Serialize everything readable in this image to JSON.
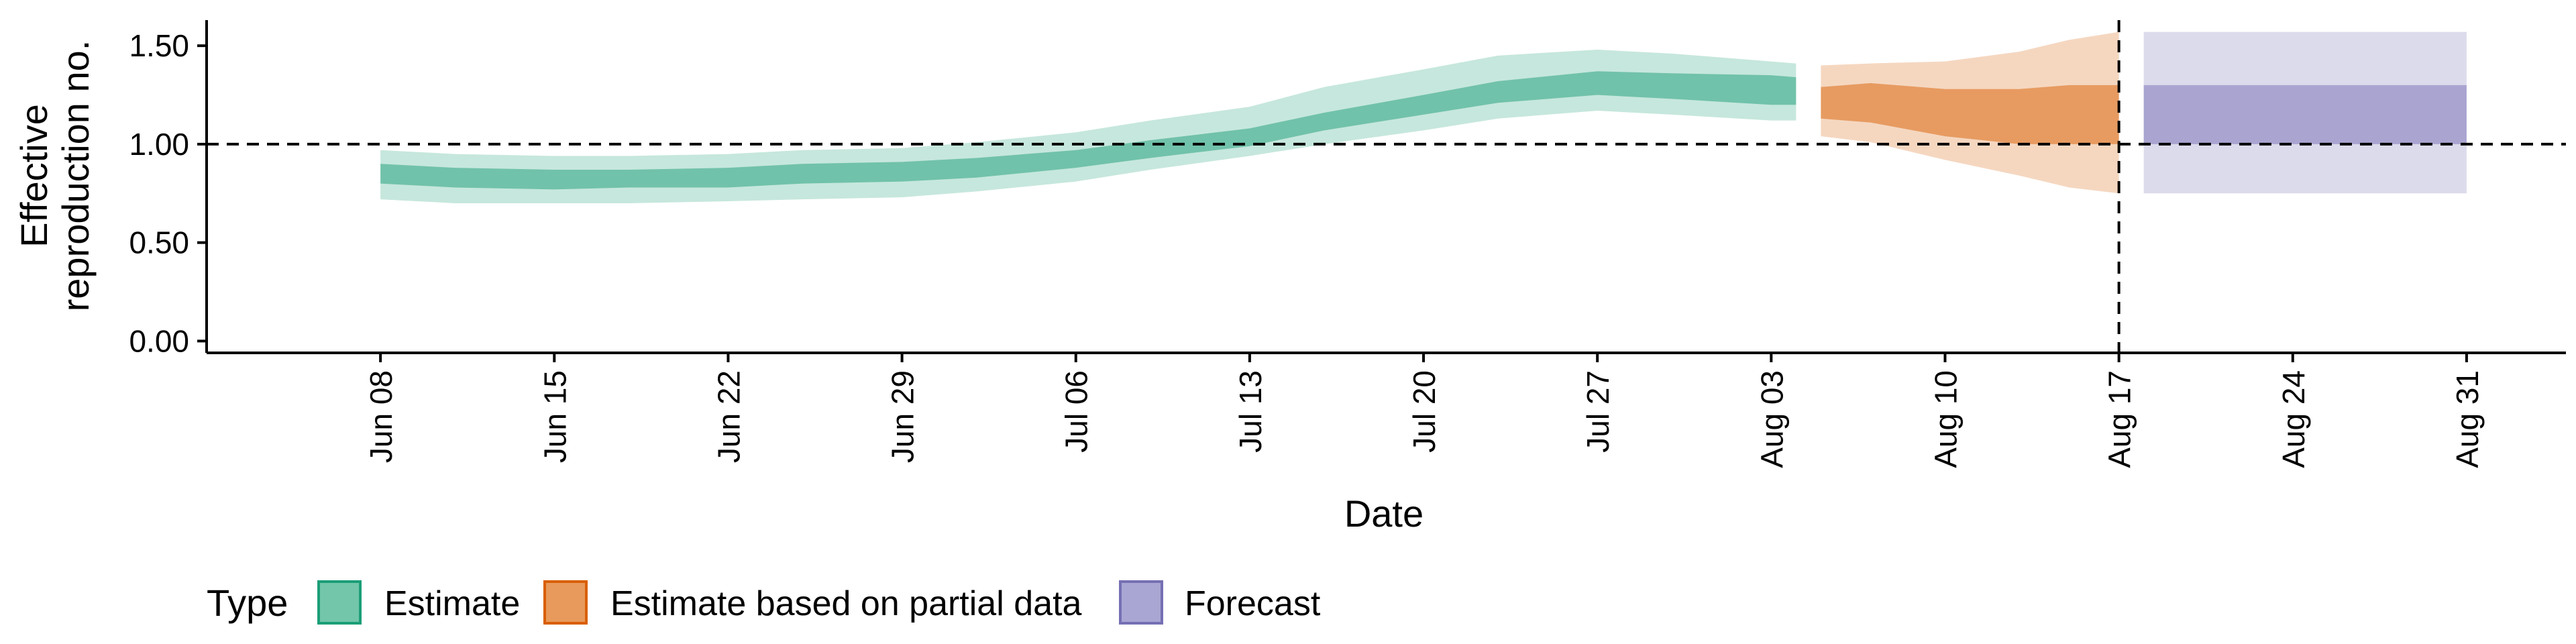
{
  "chart_data": {
    "type": "area",
    "title": "",
    "xlabel": "Date",
    "ylabel_lines": [
      "Effective",
      "reproduction no."
    ],
    "x_ticks": [
      "Jun 08",
      "Jun 15",
      "Jun 22",
      "Jun 29",
      "Jul 06",
      "Jul 13",
      "Jul 20",
      "Jul 27",
      "Aug 03",
      "Aug 10",
      "Aug 17",
      "Aug 24",
      "Aug 31"
    ],
    "y_ticks": [
      "0.00",
      "0.50",
      "1.00",
      "1.50"
    ],
    "ylim": [
      -0.06,
      1.63
    ],
    "xlim": [
      "2020-06-01",
      "2020-09-04"
    ],
    "reference_line_y": 1.0,
    "reference_line_x": "2020-08-17",
    "grid": false,
    "legend": {
      "title": "Type",
      "position": "bottom-left",
      "items": [
        {
          "label": "Estimate",
          "fill": "#73c6aa",
          "stroke": "#1b9e77"
        },
        {
          "label": "Estimate based on partial data",
          "fill": "#e89a5c",
          "stroke": "#d95f02"
        },
        {
          "label": "Forecast",
          "fill": "#a9a6d3",
          "stroke": "#7570b3"
        }
      ]
    },
    "series": [
      {
        "name": "Estimate",
        "color": "#1b9e77",
        "x": [
          "2020-06-08",
          "2020-06-11",
          "2020-06-15",
          "2020-06-18",
          "2020-06-22",
          "2020-06-25",
          "2020-06-29",
          "2020-07-02",
          "2020-07-06",
          "2020-07-09",
          "2020-07-13",
          "2020-07-16",
          "2020-07-20",
          "2020-07-23",
          "2020-07-27",
          "2020-07-30",
          "2020-08-03",
          "2020-08-04"
        ],
        "median": [
          0.85,
          0.83,
          0.82,
          0.82,
          0.83,
          0.85,
          0.86,
          0.88,
          0.92,
          0.97,
          1.03,
          1.11,
          1.2,
          1.27,
          1.32,
          1.31,
          1.28,
          1.27
        ],
        "lower_50": [
          0.8,
          0.78,
          0.77,
          0.78,
          0.78,
          0.8,
          0.81,
          0.83,
          0.88,
          0.93,
          0.99,
          1.07,
          1.15,
          1.21,
          1.25,
          1.23,
          1.2,
          1.2
        ],
        "upper_50": [
          0.9,
          0.88,
          0.87,
          0.87,
          0.88,
          0.9,
          0.91,
          0.93,
          0.97,
          1.02,
          1.08,
          1.16,
          1.25,
          1.32,
          1.37,
          1.36,
          1.35,
          1.34
        ],
        "lower_90": [
          0.72,
          0.7,
          0.7,
          0.7,
          0.71,
          0.72,
          0.73,
          0.76,
          0.81,
          0.87,
          0.94,
          1.0,
          1.07,
          1.13,
          1.17,
          1.15,
          1.12,
          1.12
        ],
        "upper_90": [
          0.97,
          0.95,
          0.94,
          0.94,
          0.95,
          0.97,
          0.98,
          1.01,
          1.06,
          1.12,
          1.19,
          1.29,
          1.38,
          1.45,
          1.48,
          1.46,
          1.42,
          1.41
        ]
      },
      {
        "name": "Estimate based on partial data",
        "color": "#d95f02",
        "x": [
          "2020-08-05",
          "2020-08-07",
          "2020-08-10",
          "2020-08-13",
          "2020-08-15",
          "2020-08-17"
        ],
        "median": [
          1.21,
          1.22,
          1.17,
          1.14,
          1.15,
          1.15
        ],
        "lower_50": [
          1.13,
          1.11,
          1.04,
          1.0,
          1.0,
          1.0
        ],
        "upper_50": [
          1.29,
          1.31,
          1.28,
          1.28,
          1.3,
          1.3
        ],
        "lower_90": [
          1.04,
          1.01,
          0.92,
          0.84,
          0.78,
          0.75
        ],
        "upper_90": [
          1.4,
          1.41,
          1.42,
          1.47,
          1.53,
          1.57
        ]
      },
      {
        "name": "Forecast",
        "color": "#7570b3",
        "x": [
          "2020-08-18",
          "2020-08-31"
        ],
        "median": [
          1.15,
          1.15
        ],
        "lower_50": [
          1.0,
          1.0
        ],
        "upper_50": [
          1.3,
          1.3
        ],
        "lower_90": [
          0.75,
          0.75
        ],
        "upper_90": [
          1.57,
          1.57
        ]
      }
    ]
  }
}
